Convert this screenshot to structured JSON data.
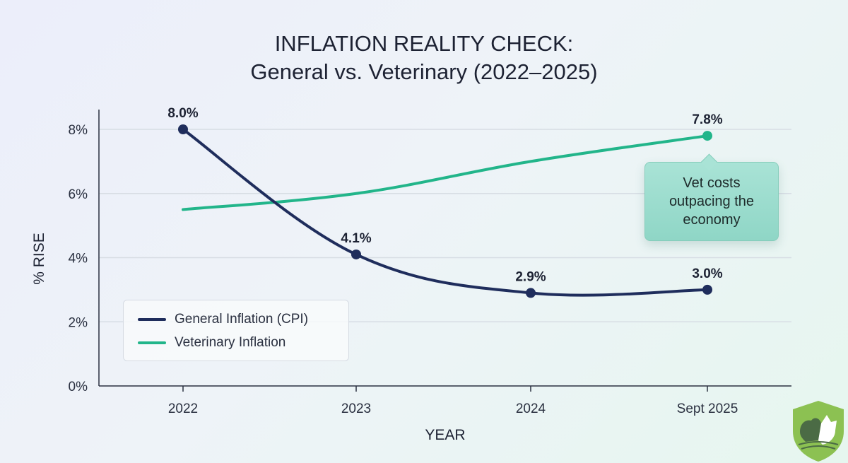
{
  "chart_data": {
    "type": "line",
    "title": "INFLATION REALITY CHECK:",
    "subtitle": "General vs. Veterinary (2022–2025)",
    "xlabel": "YEAR",
    "ylabel": "% RISE",
    "categories": [
      "2022",
      "2023",
      "2024",
      "Sept 2025"
    ],
    "y_ticks": [
      "0%",
      "2%",
      "4%",
      "6%",
      "8%"
    ],
    "ylim": [
      0,
      8
    ],
    "grid": true,
    "legend_placement": "bottom-left",
    "series": [
      {
        "name": "General Inflation (CPI)",
        "values": [
          8.0,
          4.1,
          2.9,
          3.0
        ],
        "labels": [
          "8.0%",
          "4.1%",
          "2.9%",
          "3.0%"
        ],
        "color": "#1f2d5c"
      },
      {
        "name": "Veterinary Inflation",
        "values": [
          5.5,
          6.0,
          7.0,
          7.8
        ],
        "labels": [
          null,
          null,
          null,
          "7.8%"
        ],
        "color": "#22b58a"
      }
    ],
    "annotation": "Vet costs outpacing the economy"
  },
  "logo": {
    "icon": "dog-cat-shield-logo",
    "color": "#8cc152"
  }
}
